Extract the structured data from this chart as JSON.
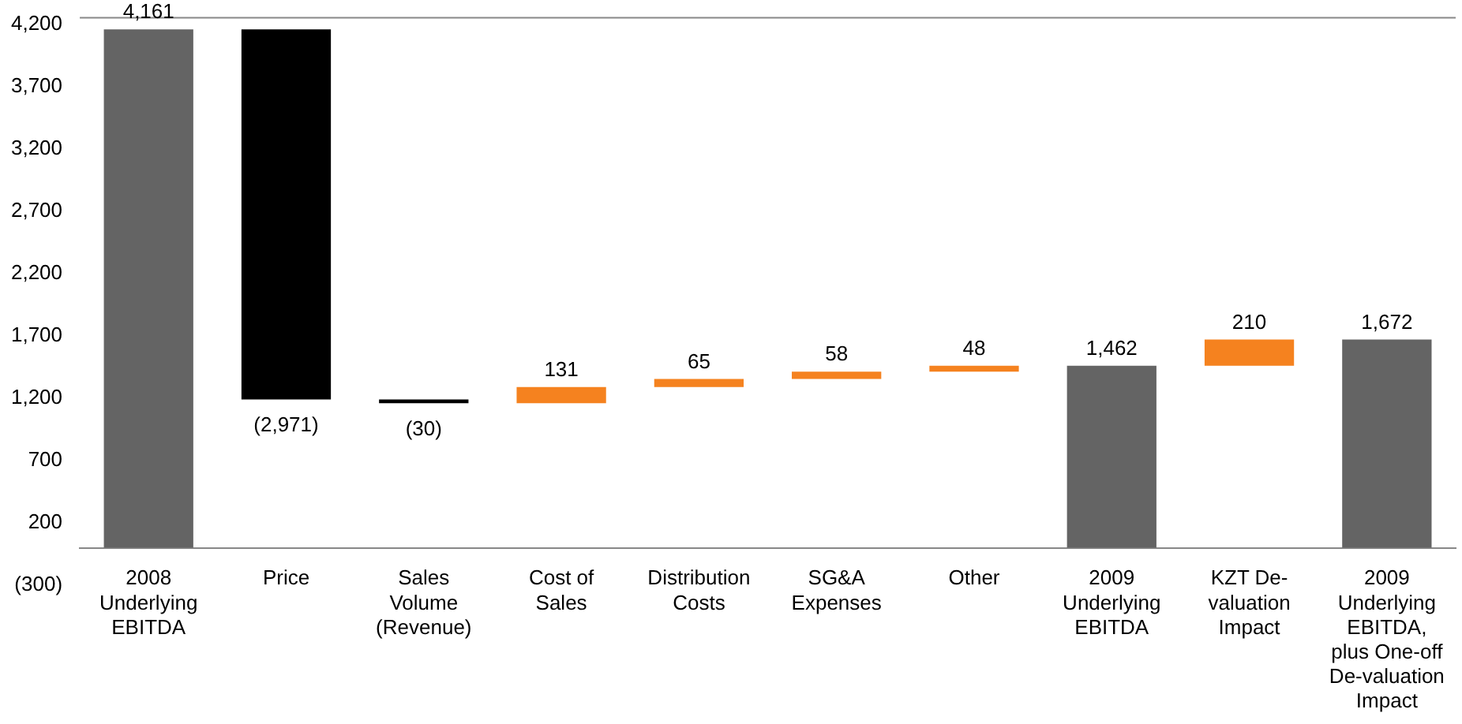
{
  "chart_data": {
    "type": "bar",
    "categories": [
      "2008 Underlying EBITDA",
      "Price",
      "Sales Volume (Revenue)",
      "Cost of Sales",
      "Distribution Costs",
      "SG&A Expenses",
      "Other",
      "2009 Underlying EBITDA",
      "KZT De-valuation Impact",
      "2009 Underlying EBITDA, plus One-off De-valuation Impact"
    ],
    "values": [
      4161,
      -2971,
      -30,
      131,
      65,
      58,
      48,
      1462,
      210,
      1672
    ],
    "base": [
      0,
      4161,
      1190,
      1160,
      1291,
      1356,
      1414,
      0,
      1462,
      0
    ],
    "colors": [
      "#646464",
      "#000000",
      "#000000",
      "#f5821f",
      "#f5821f",
      "#f5821f",
      "#f5821f",
      "#646464",
      "#f5821f",
      "#646464"
    ],
    "value_labels": [
      "4,161",
      "(2,971)",
      "(30)",
      "131",
      "65",
      "58",
      "48",
      "1,462",
      "210",
      "1,672"
    ],
    "ylim": [
      -300,
      4260
    ],
    "yticks": [
      {
        "value": -300,
        "label": "(300)"
      },
      200,
      700,
      {
        "value": 1200,
        "label": "1,200"
      },
      {
        "value": 1700,
        "label": "1,700"
      },
      {
        "value": 2200,
        "label": "2,200"
      },
      {
        "value": 2700,
        "label": "2,700"
      },
      {
        "value": 3200,
        "label": "3,200"
      },
      {
        "value": 3700,
        "label": "3,700"
      },
      {
        "value": 4200,
        "label": "4,200"
      }
    ],
    "grid": false,
    "legend": false
  }
}
